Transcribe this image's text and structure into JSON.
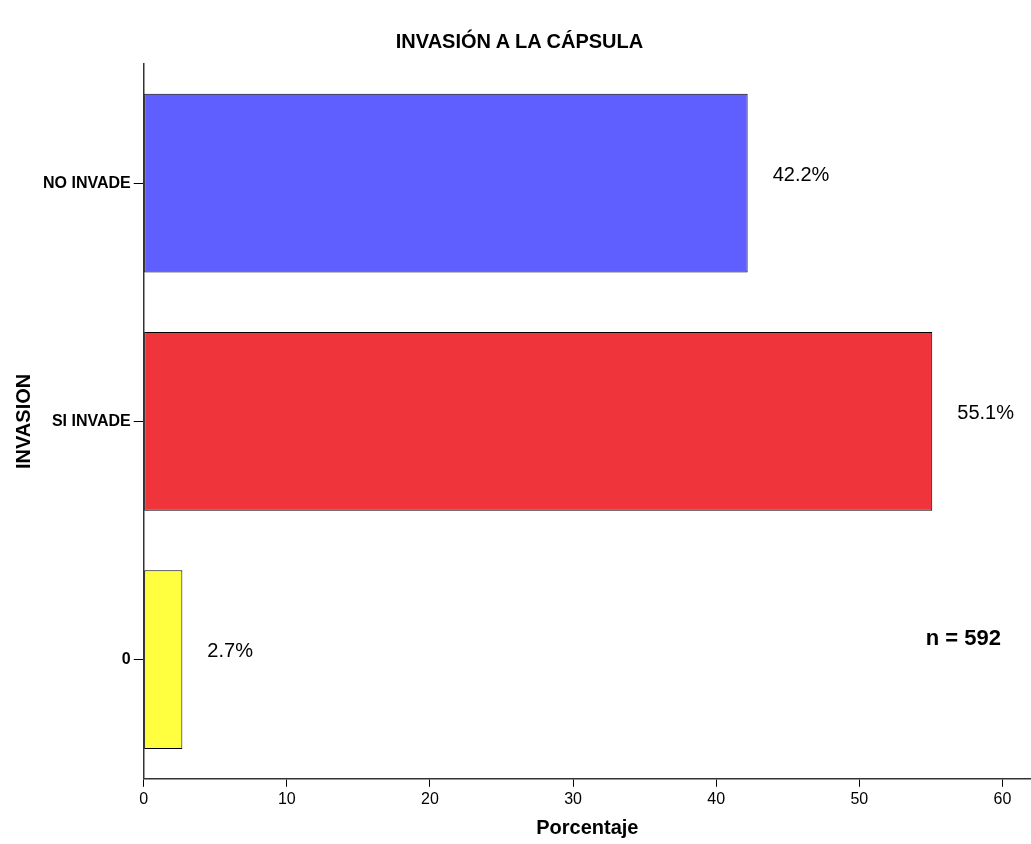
{
  "chart_data": {
    "type": "bar",
    "orientation": "horizontal",
    "title": "INVASIÓN A LA CÁPSULA",
    "xlabel": "Porcentaje",
    "ylabel": "INVASION",
    "categories": [
      "NO INVADE",
      "SI INVADE",
      "0"
    ],
    "values": [
      42.2,
      55.1,
      2.7
    ],
    "colors": [
      "#5f5fff",
      "#ef343c",
      "#ffff40"
    ],
    "value_labels": [
      "42.2%",
      "55.1%",
      "2.7%"
    ],
    "xlim": [
      0,
      62
    ],
    "xticks": [
      0,
      10,
      20,
      30,
      40,
      50,
      60
    ],
    "grid": false,
    "legend": false,
    "annotations": [
      "n = 592"
    ]
  }
}
